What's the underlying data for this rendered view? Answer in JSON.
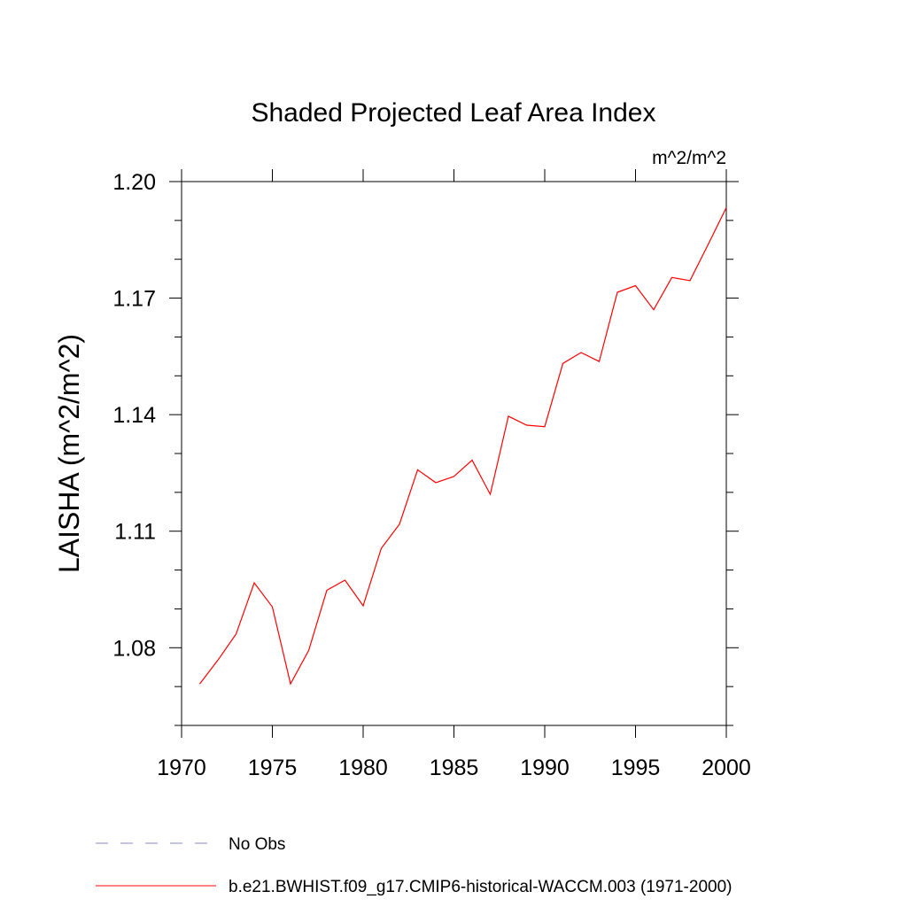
{
  "chart_data": {
    "type": "line",
    "title": "Shaded Projected Leaf Area Index",
    "units": "m^2/m^2",
    "ylabel": "LAISHA  (m^2/m^2)",
    "xlabel": "",
    "xlim": [
      1970,
      2000
    ],
    "ylim": [
      1.06,
      1.2
    ],
    "xticks": [
      1970,
      1975,
      1980,
      1985,
      1990,
      1995,
      2000
    ],
    "xtick_labels": [
      "1970",
      "1975",
      "1980",
      "1985",
      "1990",
      "1995",
      "2000"
    ],
    "yticks": [
      1.08,
      1.11,
      1.14,
      1.17,
      1.2
    ],
    "ytick_labels": [
      "1.08",
      "1.11",
      "1.14",
      "1.17",
      "1.20"
    ],
    "y_minor_step": 0.01,
    "grid": false,
    "legend_position": "bottom",
    "series": [
      {
        "name": "b.e21.BWHIST.f09_g17.CMIP6-historical-WACCM.003 (1971-2000)",
        "color": "#ff0000",
        "style": "solid",
        "x": [
          1971,
          1972,
          1973,
          1974,
          1975,
          1976,
          1977,
          1978,
          1979,
          1980,
          1981,
          1982,
          1983,
          1984,
          1985,
          1986,
          1987,
          1988,
          1989,
          1990,
          1991,
          1992,
          1993,
          1994,
          1995,
          1996,
          1997,
          1998,
          1999,
          2000
        ],
        "y": [
          1.0707,
          1.0768,
          1.0835,
          1.0967,
          1.0905,
          1.0707,
          1.0793,
          1.0948,
          1.0974,
          1.0908,
          1.1056,
          1.1118,
          1.1258,
          1.1225,
          1.1241,
          1.1283,
          1.1195,
          1.1396,
          1.1373,
          1.1369,
          1.1532,
          1.156,
          1.1537,
          1.1715,
          1.1732,
          1.167,
          1.1753,
          1.1745,
          1.1838,
          1.1933
        ]
      }
    ],
    "legend": [
      {
        "label": "No Obs",
        "color": "#8888cc",
        "style": "dashed"
      },
      {
        "label": "b.e21.BWHIST.f09_g17.CMIP6-historical-WACCM.003 (1971-2000)",
        "color": "#ff0000",
        "style": "solid"
      }
    ]
  }
}
